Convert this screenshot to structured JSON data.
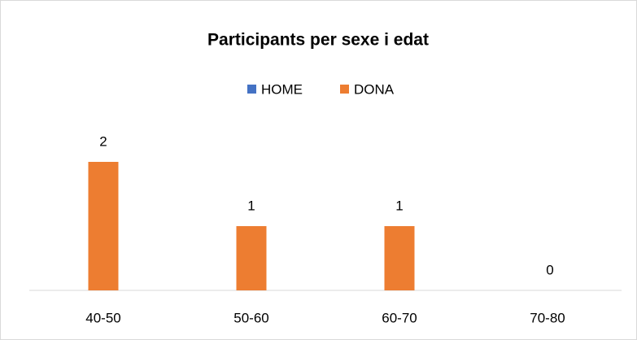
{
  "chart_data": {
    "type": "bar",
    "title": "Participants per sexe i edat",
    "categories": [
      "40-50",
      "50-60",
      "60-70",
      "70-80"
    ],
    "series": [
      {
        "name": "HOME",
        "color": "#4472c4",
        "values": [
          null,
          null,
          null,
          null
        ]
      },
      {
        "name": "DONA",
        "color": "#ed7d31",
        "values": [
          2,
          1,
          1,
          0
        ]
      }
    ],
    "ylim": [
      0,
      2.5
    ],
    "legend": "top"
  }
}
